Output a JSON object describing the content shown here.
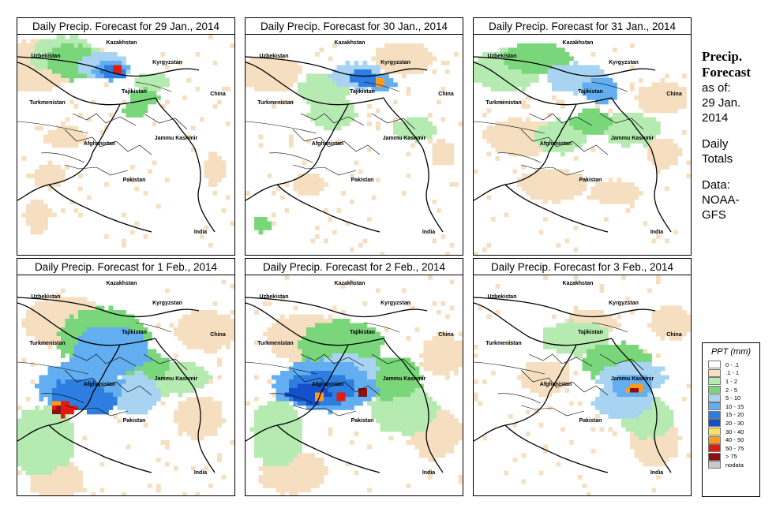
{
  "panels": [
    {
      "title": "Daily Precip. Forecast for  29 Jan., 2014",
      "day": "29jan"
    },
    {
      "title": "Daily Precip. Forecast for  30 Jan., 2014",
      "day": "30jan"
    },
    {
      "title": "Daily Precip. Forecast for  31 Jan., 2014",
      "day": "31jan"
    },
    {
      "title": "Daily Precip. Forecast for  1 Feb., 2014",
      "day": "1feb"
    },
    {
      "title": "Daily Precip. Forecast for  2 Feb., 2014",
      "day": "2feb"
    },
    {
      "title": "Daily Precip. Forecast for  3 Feb., 2014",
      "day": "3feb"
    }
  ],
  "country_labels": {
    "kazakhstan": "Kazakhstan",
    "uzbekistan": "Uzbekistan",
    "kyrgyzstan": "Kyrgyzstan",
    "tajikistan": "Tajikistan",
    "turkmenistan": "Turkmenistan",
    "china": "China",
    "afghanistan": "Afghanistan",
    "jammu_kashmir": "Jammu Kashmir",
    "pakistan": "Pakistan",
    "india": "India"
  },
  "sidebar": {
    "title_line1": "Precip.",
    "title_line2": "Forecast",
    "asof_line1": "as of:",
    "asof_line2": "29 Jan.",
    "asof_line3": "2014",
    "daily_line1": "Daily",
    "daily_line2": "Totals",
    "data_line1": "Data:",
    "data_line2": "NOAA-",
    "data_line3": "GFS"
  },
  "legend": {
    "title": "PPT (mm)",
    "items": [
      {
        "label": "0 - .1",
        "color": "#ffffff"
      },
      {
        "label": ".1 - 1",
        "color": "#f5dfc0"
      },
      {
        "label": "1 - 2",
        "color": "#b5eab0"
      },
      {
        "label": "2 - 5",
        "color": "#7ad67a"
      },
      {
        "label": "5 - 10",
        "color": "#a8d4f2"
      },
      {
        "label": "10 - 15",
        "color": "#62aef0"
      },
      {
        "label": "15 - 20",
        "color": "#2e7de0"
      },
      {
        "label": "20 - 30",
        "color": "#1450c8"
      },
      {
        "label": "30 - 40",
        "color": "#ffe060"
      },
      {
        "label": "40 - 50",
        "color": "#ff9a1a"
      },
      {
        "label": "50 - 75",
        "color": "#e21b12"
      },
      {
        "label": "> 75",
        "color": "#8c1010"
      },
      {
        "label": "nodata",
        "color": "#c8c8c8"
      }
    ]
  }
}
